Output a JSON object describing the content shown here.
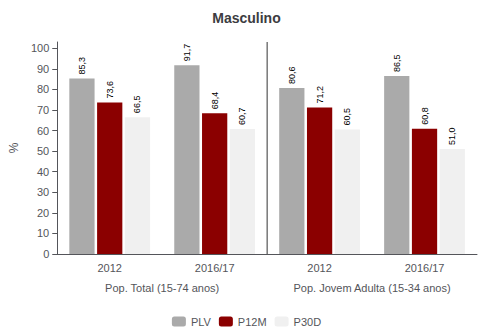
{
  "chart_data": {
    "type": "bar",
    "title": "Masculino",
    "categories": [
      "2012",
      "2016/17",
      "2012",
      "2016/17"
    ],
    "annotations": [
      "Pop. Total (15-74 anos)",
      "Pop. Jovem Adulta (15-34 anos)"
    ],
    "series": [
      {
        "name": "PLV",
        "color": "#aaaaaa",
        "values": [
          85.3,
          91.7,
          80.6,
          86.5
        ],
        "value_labels": [
          "85,3",
          "91,7",
          "80,6",
          "86,5"
        ]
      },
      {
        "name": "P12M",
        "color": "#8b0000",
        "values": [
          73.6,
          68.4,
          71.2,
          60.8
        ],
        "value_labels": [
          "73,6",
          "68,4",
          "71,2",
          "60,8"
        ]
      },
      {
        "name": "P30D",
        "color": "#f0f0f0",
        "values": [
          66.5,
          60.7,
          60.5,
          51.0
        ],
        "value_labels": [
          "66,5",
          "60,7",
          "60,5",
          "51,0"
        ]
      }
    ],
    "ylabel": "%",
    "ylim": [
      0,
      103
    ],
    "yticks": [
      0,
      10,
      20,
      30,
      40,
      50,
      60,
      70,
      80,
      90,
      100
    ],
    "grid": false,
    "legend": "bottom",
    "data_labels": true
  }
}
